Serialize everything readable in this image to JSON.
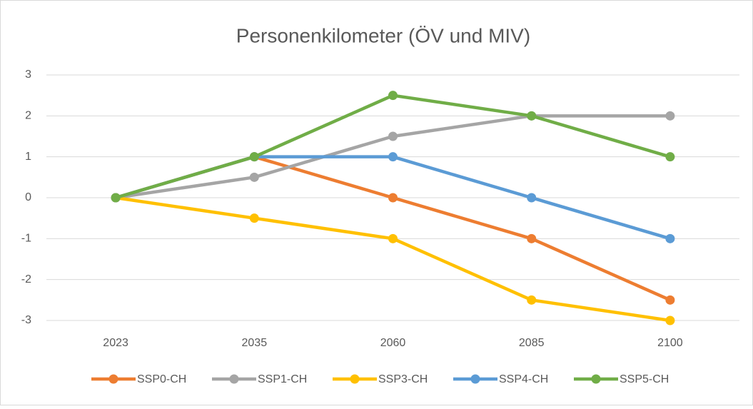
{
  "chart_data": {
    "type": "line",
    "title": "Personenkilometer (ÖV und MIV)",
    "categories": [
      "2023",
      "2035",
      "2060",
      "2085",
      "2100"
    ],
    "series": [
      {
        "name": "SSP0-CH",
        "color": "#ED7D31",
        "values": [
          0,
          1,
          0,
          -1,
          -2.5
        ]
      },
      {
        "name": "SSP1-CH",
        "color": "#A5A5A5",
        "values": [
          0,
          0.5,
          1.5,
          2,
          2
        ]
      },
      {
        "name": "SSP3-CH",
        "color": "#FFC000",
        "values": [
          0,
          -0.5,
          -1,
          -2.5,
          -3
        ]
      },
      {
        "name": "SSP4-CH",
        "color": "#5B9BD5",
        "values": [
          0,
          1,
          1,
          0,
          -1
        ]
      },
      {
        "name": "SSP5-CH",
        "color": "#70AD47",
        "values": [
          0,
          1,
          2.5,
          2,
          1
        ]
      }
    ],
    "ylim": [
      -3,
      3
    ],
    "yticks": [
      -3,
      -2,
      -1,
      0,
      1,
      2,
      3
    ],
    "grid": true,
    "legend": "bottom"
  }
}
